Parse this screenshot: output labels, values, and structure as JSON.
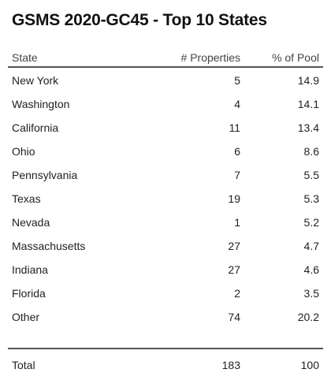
{
  "title": "GSMS 2020-GC45 - Top 10 States",
  "columns": {
    "state": "State",
    "properties": "# Properties",
    "pool": "% of Pool"
  },
  "rows": [
    {
      "state": "New York",
      "properties": "5",
      "pool": "14.9"
    },
    {
      "state": "Washington",
      "properties": "4",
      "pool": "14.1"
    },
    {
      "state": "California",
      "properties": "11",
      "pool": "13.4"
    },
    {
      "state": "Ohio",
      "properties": "6",
      "pool": "8.6"
    },
    {
      "state": "Pennsylvania",
      "properties": "7",
      "pool": "5.5"
    },
    {
      "state": "Texas",
      "properties": "19",
      "pool": "5.3"
    },
    {
      "state": "Nevada",
      "properties": "1",
      "pool": "5.2"
    },
    {
      "state": "Massachusetts",
      "properties": "27",
      "pool": "4.7"
    },
    {
      "state": "Indiana",
      "properties": "27",
      "pool": "4.6"
    },
    {
      "state": "Florida",
      "properties": "2",
      "pool": "3.5"
    },
    {
      "state": "Other",
      "properties": "74",
      "pool": "20.2"
    }
  ],
  "total": {
    "label": "Total",
    "properties": "183",
    "pool": "100"
  }
}
